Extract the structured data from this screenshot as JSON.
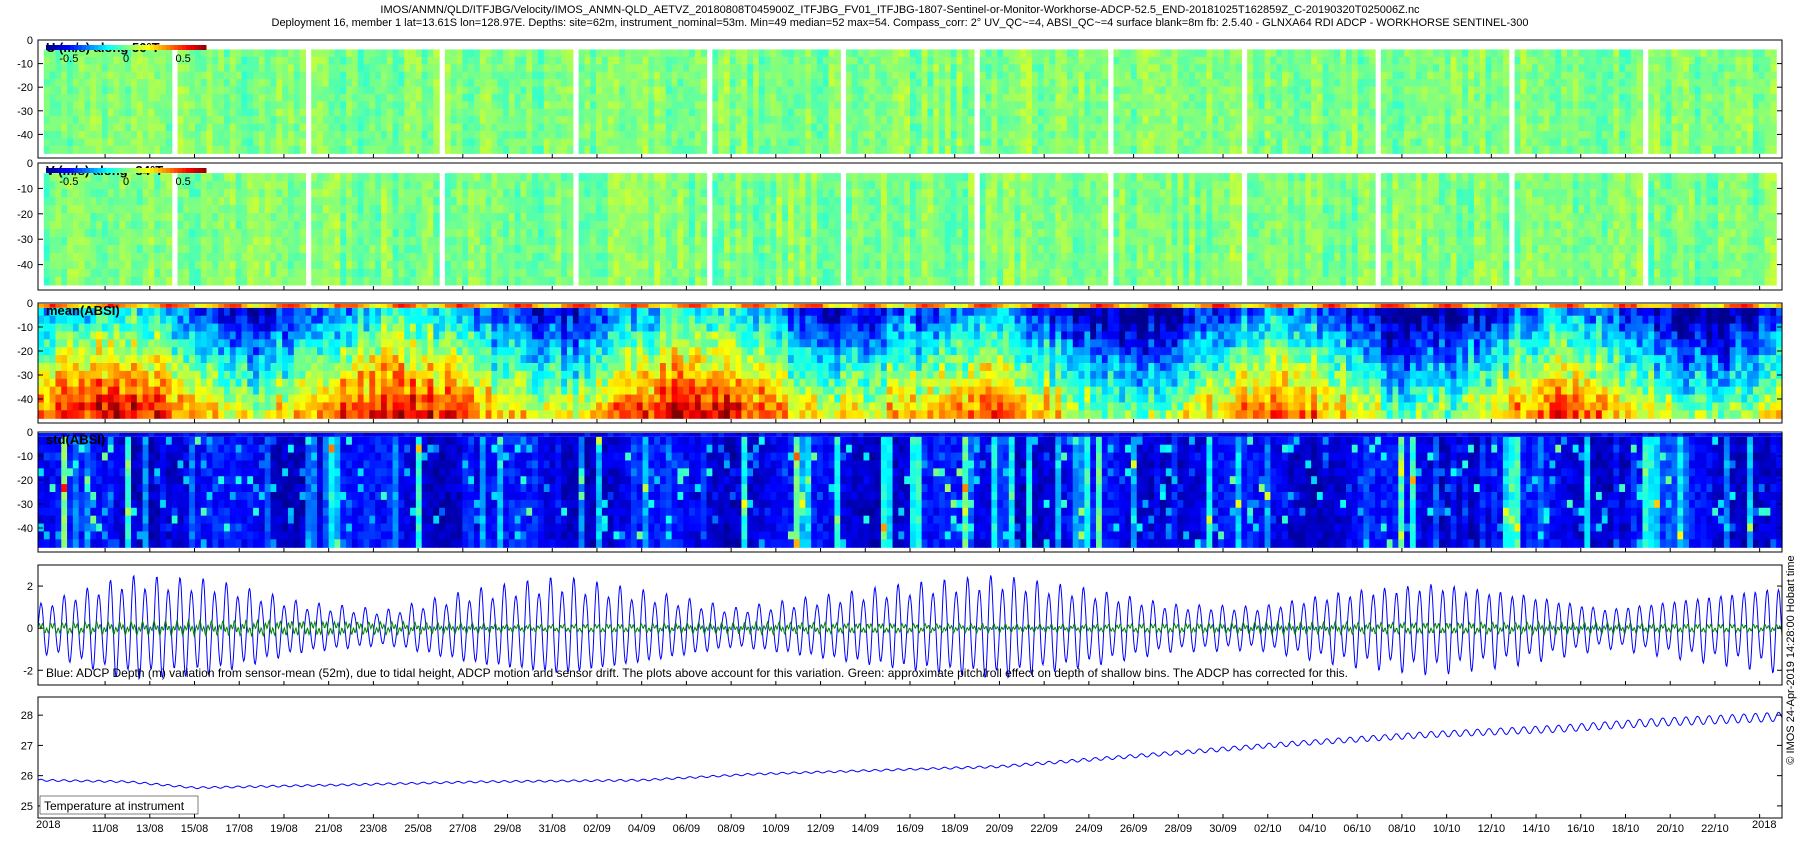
{
  "header": {
    "title_line1": "IMOS/ANMN/QLD/ITFJBG/Velocity/IMOS_ANMN-QLD_AETVZ_20180808T045900Z_ITFJBG_FV01_ITFJBG-1807-Sentinel-or-Monitor-Workhorse-ADCP-52.5_END-20181025T162859Z_C-20190320T025006Z.nc",
    "title_line2": "Deployment 16, member 1 lat=13.61S lon=128.97E. Depths: site=62m, instrument_nominal=53m. Min=49 median=52 max=54. Compass_corr: 2° UV_QC~=4, ABSI_QC~=4 surface blank=8m fb: 2.5.40 - GLNXA64 RDI ADCP - WORKHORSE SENTINEL-300"
  },
  "footer": {
    "credit": "© IMOS 24-Apr-2019 14:28:00 Hobart time",
    "year_left": "2018",
    "year_right": "2018"
  },
  "colors": {
    "colormap": [
      "#00008f",
      "#0000ff",
      "#0080ff",
      "#00ffff",
      "#80ff80",
      "#ffff00",
      "#ff8000",
      "#ff0000",
      "#800000"
    ],
    "depth_line": "#0000ff",
    "pitchroll_line": "#008000",
    "temperature_line": "#0000ff"
  },
  "chart_data": [
    {
      "type": "heatmap",
      "panel": "u_velocity",
      "label": "U (m/s) along 56°T",
      "colorbar_ticks": [
        "-0.5",
        "0",
        "0.5"
      ],
      "clim": [
        -0.7,
        0.7
      ],
      "ylim": [
        -50,
        0
      ],
      "yticks": [
        0,
        -10,
        -20,
        -30,
        -40
      ],
      "valid_depth": [
        -48,
        -4
      ]
    },
    {
      "type": "heatmap",
      "panel": "v_velocity",
      "label": "V (m/s) along -34°T",
      "colorbar_ticks": [
        "-0.5",
        "0",
        "0.5"
      ],
      "clim": [
        -0.7,
        0.7
      ],
      "ylim": [
        -50,
        0
      ],
      "yticks": [
        0,
        -10,
        -20,
        -30,
        -40
      ],
      "valid_depth": [
        -48,
        -4
      ]
    },
    {
      "type": "heatmap",
      "panel": "mean_absi",
      "label": "mean(ABSI)",
      "ylim": [
        -50,
        0
      ],
      "yticks": [
        0,
        -10,
        -20,
        -30,
        -40
      ],
      "valid_depth": [
        -48,
        -2
      ]
    },
    {
      "type": "heatmap",
      "panel": "std_absi",
      "label": "std(ABSI)",
      "ylim": [
        -50,
        0
      ],
      "yticks": [
        0,
        -10,
        -20,
        -30,
        -40
      ],
      "valid_depth": [
        -48,
        -2
      ]
    },
    {
      "type": "line",
      "panel": "depth_variation",
      "annotation": "Blue: ADCP Depth (m) variation from sensor-mean (52m), due to tidal height, ADCP motion and sensor drift. The plots above account for this variation. Green: approximate pitch/roll effect on depth of shallow bins. The ADCP has corrected for this.",
      "ylim": [
        -2.7,
        3
      ],
      "yticks": [
        2,
        0,
        -2
      ],
      "series": [
        {
          "key": "depth",
          "amplitude_envelope": [
            1.2,
            2.6,
            2.4,
            1.3,
            0.9,
            1.9,
            2.5,
            1.8,
            1.0,
            1.6,
            2.2,
            2.6,
            2.0,
            1.2,
            1.1,
            1.9,
            2.3,
            1.8,
            1.0,
            1.6,
            2.2
          ]
        },
        {
          "key": "pitch_roll",
          "amplitude_envelope": [
            0.3,
            0.4,
            0.2,
            0.3,
            0.2,
            0.3,
            0.3,
            0.2
          ]
        }
      ]
    },
    {
      "type": "line",
      "panel": "temperature",
      "annotation": "Temperature at instrument",
      "ylim": [
        24.6,
        28.6
      ],
      "yticks": [
        28,
        27,
        26,
        25
      ],
      "series": [
        {
          "key": "temperature",
          "trend_day_values": [
            [
              0,
              25.85
            ],
            [
              4,
              25.8
            ],
            [
              7,
              25.6
            ],
            [
              14,
              25.7
            ],
            [
              20,
              25.8
            ],
            [
              27,
              25.85
            ],
            [
              32,
              26.05
            ],
            [
              43,
              26.3
            ],
            [
              50,
              26.7
            ],
            [
              56,
              27.05
            ],
            [
              62,
              27.35
            ],
            [
              68,
              27.55
            ],
            [
              72,
              27.75
            ],
            [
              78,
              27.95
            ]
          ]
        }
      ]
    }
  ],
  "x_axis": {
    "start": "08/08",
    "end": "24/10",
    "tick_labels": [
      "11/08",
      "13/08",
      "15/08",
      "17/08",
      "19/08",
      "21/08",
      "23/08",
      "25/08",
      "27/08",
      "29/08",
      "31/08",
      "02/09",
      "04/09",
      "06/09",
      "08/09",
      "10/09",
      "12/09",
      "14/09",
      "16/09",
      "18/09",
      "20/09",
      "22/09",
      "24/09",
      "26/09",
      "28/09",
      "30/09",
      "02/10",
      "04/10",
      "06/10",
      "08/10",
      "10/10",
      "12/10",
      "14/10",
      "16/10",
      "18/10",
      "20/10",
      "22/10"
    ]
  }
}
